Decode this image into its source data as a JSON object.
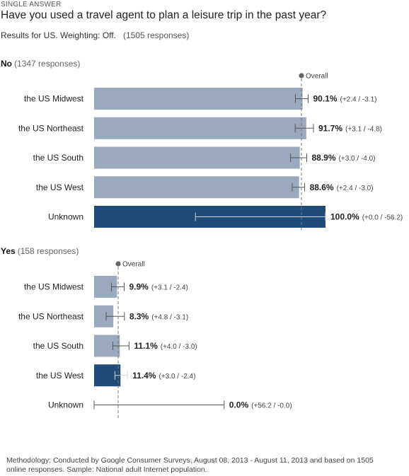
{
  "header": {
    "tag": "SINGLE ANSWER",
    "question": "Have you used a travel agent to plan a leisure trip in the past year?",
    "results_for": "Results for US. Weighting: Off.",
    "responses": "(1505 responses)"
  },
  "colors": {
    "bar_light": "#9aa9bd",
    "bar_dark": "#1f4b78",
    "overall_line": "#777777",
    "error_bar": "#555555"
  },
  "chart_data": [
    {
      "type": "bar",
      "orientation": "horizontal",
      "group_label": "No",
      "group_responses": "(1347 responses)",
      "overall_label": "Overall",
      "overall_value": 89.6,
      "xlim": [
        0,
        100
      ],
      "categories": [
        "the US Midwest",
        "the US Northeast",
        "the US South",
        "the US West",
        "Unknown"
      ],
      "values": [
        90.1,
        91.7,
        88.9,
        88.6,
        100.0
      ],
      "value_labels": [
        "90.1%",
        "91.7%",
        "88.9%",
        "88.6%",
        "100.0%"
      ],
      "error_plus": [
        2.4,
        3.1,
        3.0,
        2.4,
        0.0
      ],
      "error_minus": [
        3.1,
        4.8,
        4.0,
        3.0,
        56.2
      ],
      "error_labels": [
        "(+2.4 / -3.1)",
        "(+3.1 / -4.8)",
        "(+3.0 / -4.0)",
        "(+2.4 / -3.0)",
        "(+0.0 / -56.2)"
      ],
      "highlight_index": 4
    },
    {
      "type": "bar",
      "orientation": "horizontal",
      "group_label": "Yes",
      "group_responses": "(158 responses)",
      "overall_label": "Overall",
      "overall_value": 10.4,
      "xlim": [
        0,
        100
      ],
      "categories": [
        "the US Midwest",
        "the US Northeast",
        "the US South",
        "the US West",
        "Unknown"
      ],
      "values": [
        9.9,
        8.3,
        11.1,
        11.4,
        0.0
      ],
      "value_labels": [
        "9.9%",
        "8.3%",
        "11.1%",
        "11.4%",
        "0.0%"
      ],
      "error_plus": [
        3.1,
        4.8,
        4.0,
        3.0,
        56.2
      ],
      "error_minus": [
        2.4,
        3.1,
        3.0,
        2.4,
        0.0
      ],
      "error_labels": [
        "(+3.1 / -2.4)",
        "(+4.8 / -3.1)",
        "(+4.0 / -3.0)",
        "(+3.0 / -2.4)",
        "(+56.2 / -0.0)"
      ],
      "highlight_index": 3
    }
  ],
  "footer": {
    "methodology": "Methodology: Conducted by Google Consumer Surveys, August 08, 2013 - August 11, 2013 and based on 1505 online responses. Sample: National adult Internet population."
  }
}
